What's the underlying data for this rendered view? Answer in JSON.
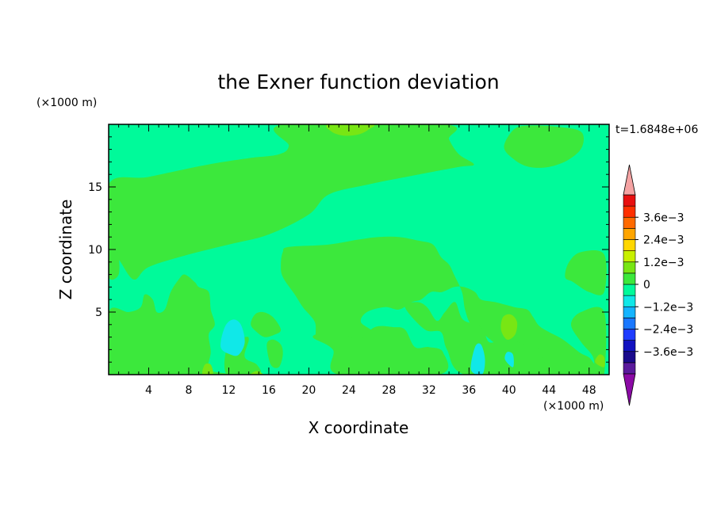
{
  "chart_data": {
    "type": "heatmap",
    "title": "the Exner function deviation",
    "xlabel": "X coordinate",
    "ylabel": "Z coordinate",
    "x_unit": "(×1000 m)",
    "y_unit": "(×1000 m)",
    "time_label": "t=1.6848e+06",
    "xlim": [
      0,
      50
    ],
    "ylim": [
      0,
      20
    ],
    "x_ticks": [
      4,
      8,
      12,
      16,
      20,
      24,
      28,
      32,
      36,
      40,
      44,
      48
    ],
    "y_ticks": [
      5,
      10,
      15
    ],
    "colorbar": {
      "levels": [
        -0.0042,
        -0.0036,
        -0.003,
        -0.0024,
        -0.0018,
        -0.0012,
        -0.0006,
        0,
        0.0006,
        0.0012,
        0.0018,
        0.0024,
        0.003,
        0.0036,
        0.0042
      ],
      "colors": [
        "#5a1a9c",
        "#1a0a8c",
        "#1212c0",
        "#1e3cff",
        "#1a78ff",
        "#14b4ff",
        "#10e8e8",
        "#00fa9a",
        "#3ce83c",
        "#78e614",
        "#c8f000",
        "#ffd700",
        "#ffa500",
        "#ff6a00",
        "#ff3000",
        "#e81010"
      ],
      "under_color": "#8b0aa5",
      "over_color": "#f5a3a3",
      "tick_labels": [
        {
          "value": 0.0036,
          "label": "3.6e−3"
        },
        {
          "value": 0.0024,
          "label": "2.4e−3"
        },
        {
          "value": 0.0012,
          "label": "1.2e−3"
        },
        {
          "value": 0,
          "label": "0"
        },
        {
          "value": -0.0012,
          "label": "−1.2e−3"
        },
        {
          "value": -0.0024,
          "label": "−2.4e−3"
        },
        {
          "value": -0.0036,
          "label": "−3.6e−3"
        }
      ]
    },
    "background_color": "#00fa9a",
    "regions": [
      {
        "level": 0.0003,
        "color": "#3ce83c",
        "points": [
          [
            0,
            15.2
          ],
          [
            4,
            15.8
          ],
          [
            10,
            16.8
          ],
          [
            14,
            17.3
          ],
          [
            17,
            17.6
          ],
          [
            18,
            18.3
          ],
          [
            17.5,
            20
          ],
          [
            33.5,
            20
          ],
          [
            34,
            18.8
          ],
          [
            35,
            17.6
          ],
          [
            36.5,
            16.8
          ],
          [
            35,
            16.6
          ],
          [
            31,
            16
          ],
          [
            26,
            15.2
          ],
          [
            22,
            14.4
          ],
          [
            20,
            12.8
          ],
          [
            16,
            11.2
          ],
          [
            12,
            10.4
          ],
          [
            8,
            9.6
          ],
          [
            4,
            8.6
          ],
          [
            2.5,
            7.6
          ],
          [
            1,
            9.2
          ],
          [
            0,
            9.8
          ]
        ]
      },
      {
        "level": 0.0009,
        "color": "#78e614",
        "points": [
          [
            22,
            20
          ],
          [
            22.3,
            19.4
          ],
          [
            23.5,
            19.1
          ],
          [
            25,
            19.2
          ],
          [
            26,
            19.6
          ],
          [
            26.3,
            20
          ]
        ]
      },
      {
        "level": 0.0003,
        "color": "#3ce83c",
        "points": [
          [
            39.5,
            18.2
          ],
          [
            40.5,
            19.6
          ],
          [
            42,
            19.9
          ],
          [
            45,
            19.8
          ],
          [
            47.2,
            19.4
          ],
          [
            47.3,
            18.2
          ],
          [
            46,
            17.2
          ],
          [
            44,
            16.6
          ],
          [
            42,
            16.6
          ],
          [
            40.5,
            17.2
          ]
        ]
      },
      {
        "level": 0.0003,
        "color": "#3ce83c",
        "points": [
          [
            0,
            10.6
          ],
          [
            0.9,
            9.8
          ],
          [
            1,
            8
          ],
          [
            0,
            7.8
          ]
        ]
      },
      {
        "level": 0.0003,
        "color": "#3ce83c",
        "points": [
          [
            18,
            10.2
          ],
          [
            22,
            10.4
          ],
          [
            25,
            10.8
          ],
          [
            27,
            11
          ],
          [
            29,
            11
          ],
          [
            31,
            10.7
          ],
          [
            32.4,
            10.4
          ],
          [
            33.2,
            9.4
          ],
          [
            34,
            8.8
          ],
          [
            34.5,
            8
          ],
          [
            35.3,
            6.6
          ],
          [
            35.6,
            5.2
          ],
          [
            36.2,
            4
          ],
          [
            37.5,
            3.2
          ],
          [
            39,
            2.3
          ],
          [
            40.6,
            1.8
          ],
          [
            41.8,
            0
          ],
          [
            48.3,
            0
          ],
          [
            48.2,
            1.2
          ],
          [
            47,
            1.8
          ],
          [
            45.4,
            2.8
          ],
          [
            44,
            3.4
          ],
          [
            43,
            3.9
          ],
          [
            42.4,
            4.6
          ],
          [
            41.8,
            5.2
          ],
          [
            40.5,
            5.4
          ],
          [
            38.6,
            5.8
          ],
          [
            37.2,
            6
          ],
          [
            36.6,
            6.6
          ],
          [
            35.5,
            7
          ],
          [
            34.5,
            7
          ],
          [
            33.3,
            6.6
          ],
          [
            32.2,
            6.6
          ],
          [
            31.2,
            6
          ],
          [
            30.3,
            5.8
          ],
          [
            29,
            5.2
          ],
          [
            27.6,
            5.4
          ],
          [
            25.8,
            5
          ],
          [
            25.2,
            4.2
          ],
          [
            26.4,
            3.4
          ],
          [
            25.8,
            2.6
          ],
          [
            24,
            2.4
          ],
          [
            22.2,
            2.8
          ],
          [
            20.8,
            2.8
          ],
          [
            20.6,
            4.2
          ],
          [
            19.4,
            5.4
          ],
          [
            18.6,
            6.4
          ],
          [
            17.4,
            7.8
          ],
          [
            17.2,
            8.8
          ],
          [
            17.4,
            9.8
          ]
        ]
      },
      {
        "level": 0.0003,
        "color": "#3ce83c",
        "points": [
          [
            29.6,
            5.4
          ],
          [
            31.6,
            3.6
          ],
          [
            33.2,
            3.4
          ],
          [
            33.8,
            2
          ],
          [
            35.6,
            0
          ],
          [
            43,
            0
          ],
          [
            43,
            2
          ],
          [
            41.6,
            2.4
          ],
          [
            40.2,
            2.8
          ],
          [
            39.2,
            2.8
          ],
          [
            38,
            2.6
          ],
          [
            37.2,
            3.8
          ],
          [
            35.4,
            4.4
          ],
          [
            34.6,
            5.8
          ],
          [
            33.6,
            5
          ],
          [
            32.8,
            4.3
          ],
          [
            31.8,
            5.4
          ],
          [
            30.8,
            5.8
          ]
        ]
      },
      {
        "level": 0.0003,
        "color": "#3ce83c",
        "points": [
          [
            20.4,
            3
          ],
          [
            22.4,
            2
          ],
          [
            23,
            0
          ],
          [
            33,
            0
          ],
          [
            33.4,
            1.8
          ],
          [
            32,
            2.2
          ],
          [
            30.6,
            2.2
          ],
          [
            29.6,
            3.6
          ],
          [
            28.4,
            3.8
          ],
          [
            26.6,
            3.8
          ],
          [
            25,
            2.8
          ],
          [
            23.6,
            3.2
          ],
          [
            22,
            3.4
          ]
        ]
      },
      {
        "level": 0.0003,
        "color": "#3ce83c",
        "points": [
          [
            0,
            5
          ],
          [
            2,
            5
          ],
          [
            3.2,
            5.4
          ],
          [
            3.6,
            6.4
          ],
          [
            4.4,
            6
          ],
          [
            4.8,
            5
          ],
          [
            5.6,
            5.2
          ],
          [
            6.2,
            6.6
          ],
          [
            7,
            7.6
          ],
          [
            7.6,
            8
          ],
          [
            8.6,
            7.4
          ],
          [
            9,
            7
          ],
          [
            10,
            6.6
          ],
          [
            10.2,
            5.2
          ],
          [
            10.6,
            4
          ],
          [
            10,
            3.2
          ],
          [
            10.2,
            1.8
          ],
          [
            10,
            0.4
          ],
          [
            11.8,
            0
          ],
          [
            0,
            0
          ]
        ]
      },
      {
        "level": 0.0003,
        "color": "#3ce83c",
        "points": [
          [
            11.8,
            0
          ],
          [
            12,
            2.6
          ],
          [
            13.6,
            3
          ],
          [
            14,
            2.8
          ],
          [
            13.6,
            1.4
          ],
          [
            14.8,
            0.8
          ],
          [
            15,
            0
          ]
        ]
      },
      {
        "level": 0.0003,
        "color": "#3ce83c",
        "points": [
          [
            14.2,
            4
          ],
          [
            14.6,
            4.8
          ],
          [
            15.4,
            5
          ],
          [
            16.4,
            4.6
          ],
          [
            17.2,
            3.6
          ],
          [
            16.6,
            3.2
          ],
          [
            15.6,
            3
          ],
          [
            14.8,
            3.4
          ]
        ]
      },
      {
        "level": 0.0003,
        "color": "#3ce83c",
        "points": [
          [
            15.8,
            2.4
          ],
          [
            16.4,
            2.8
          ],
          [
            17.2,
            2.4
          ],
          [
            17.4,
            1.6
          ],
          [
            17,
            0.6
          ],
          [
            16.2,
            0.8
          ]
        ]
      },
      {
        "level": 0.0003,
        "color": "#3ce83c",
        "points": [
          [
            45.6,
            7.8
          ],
          [
            46,
            9
          ],
          [
            47.2,
            9.8
          ],
          [
            49.5,
            9.6
          ],
          [
            49.5,
            6.6
          ],
          [
            48,
            6.6
          ],
          [
            46.4,
            7.4
          ]
        ]
      },
      {
        "level": 0.0003,
        "color": "#3ce83c",
        "points": [
          [
            46.2,
            4
          ],
          [
            47.2,
            5
          ],
          [
            49.5,
            5
          ],
          [
            49.5,
            0
          ],
          [
            48.6,
            0
          ],
          [
            48.4,
            1.4
          ],
          [
            47.2,
            2.6
          ]
        ]
      },
      {
        "level": -0.0003,
        "color": "#10e8e8",
        "points": [
          [
            11.2,
            2.2
          ],
          [
            11.6,
            3.8
          ],
          [
            12.4,
            4.4
          ],
          [
            13.2,
            4
          ],
          [
            13.6,
            2.6
          ],
          [
            13,
            1.6
          ],
          [
            12.2,
            1.6
          ]
        ]
      },
      {
        "level": -0.0003,
        "color": "#10e8e8",
        "points": [
          [
            36.2,
            0.4
          ],
          [
            36.6,
            2.2
          ],
          [
            37.2,
            2.4
          ],
          [
            37.6,
            1.2
          ],
          [
            37.3,
            0
          ]
        ]
      },
      {
        "level": -0.0003,
        "color": "#10e8e8",
        "points": [
          [
            39.6,
            1.2
          ],
          [
            39.8,
            1.8
          ],
          [
            40.4,
            1.6
          ],
          [
            40.4,
            0.6
          ]
        ]
      },
      {
        "level": 0.0009,
        "color": "#78e614",
        "points": [
          [
            39.2,
            3.6
          ],
          [
            39.4,
            4.6
          ],
          [
            40.2,
            4.8
          ],
          [
            40.8,
            4.2
          ],
          [
            40.6,
            3.2
          ],
          [
            39.8,
            2.8
          ]
        ]
      },
      {
        "level": 0.0009,
        "color": "#78e614",
        "points": [
          [
            9.4,
            0
          ],
          [
            9.6,
            0.8
          ],
          [
            10.2,
            0.8
          ],
          [
            10.4,
            0
          ]
        ]
      },
      {
        "level": 0.0009,
        "color": "#78e614",
        "points": [
          [
            14.2,
            0
          ],
          [
            14.8,
            0.3
          ],
          [
            15.4,
            0
          ]
        ]
      },
      {
        "level": 0.0009,
        "color": "#78e614",
        "points": [
          [
            48.6,
            1
          ],
          [
            49,
            1.6
          ],
          [
            49.5,
            1.4
          ],
          [
            49.5,
            0.6
          ]
        ]
      }
    ]
  }
}
